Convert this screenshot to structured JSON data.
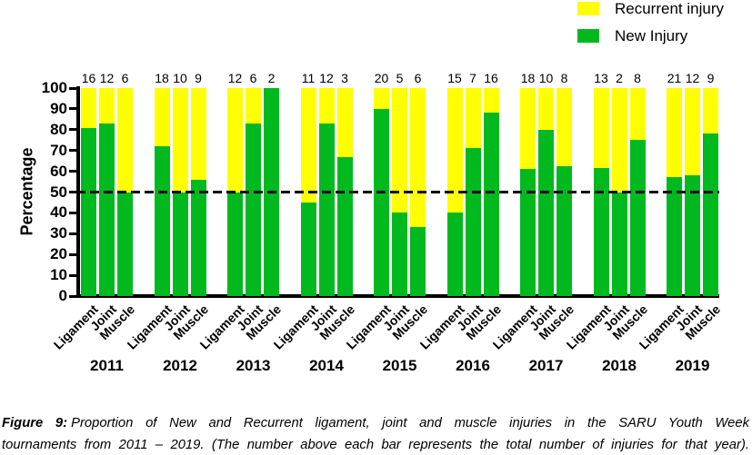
{
  "legend": {
    "items": [
      {
        "id": "recurrent",
        "label": "Recurrent injury",
        "color": "#FFFF00"
      },
      {
        "id": "new",
        "label": "New Injury",
        "color": "#00B91F"
      }
    ]
  },
  "y_axis": {
    "label": "Percentage",
    "ticks": [
      100,
      90,
      80,
      70,
      60,
      50,
      40,
      30,
      20,
      10,
      0
    ]
  },
  "colors": {
    "new_injury": "#00B91F",
    "recurrent_injury": "#FFFF00",
    "axis": "#000000"
  },
  "chart_data": {
    "type": "bar",
    "stacked": true,
    "ylabel": "Percentage",
    "ylim": [
      0,
      100
    ],
    "grid": false,
    "legend_position": "top-right",
    "reference_line_pct": 50,
    "subcategories": [
      "Ligament",
      "Joint",
      "Muscle"
    ],
    "series_note": "bars stacked to 100%: New Injury (green, bottom) + Recurrent injury (yellow, top); number above bar = total injuries",
    "groups": [
      {
        "year": "2011",
        "bars": [
          {
            "category": "Ligament",
            "total": 16,
            "new_pct": 81,
            "recurrent_pct": 19
          },
          {
            "category": "Joint",
            "total": 12,
            "new_pct": 83,
            "recurrent_pct": 17
          },
          {
            "category": "Muscle",
            "total": 6,
            "new_pct": 50,
            "recurrent_pct": 50
          }
        ]
      },
      {
        "year": "2012",
        "bars": [
          {
            "category": "Ligament",
            "total": 18,
            "new_pct": 72,
            "recurrent_pct": 28
          },
          {
            "category": "Joint",
            "total": 10,
            "new_pct": 50,
            "recurrent_pct": 50
          },
          {
            "category": "Muscle",
            "total": 9,
            "new_pct": 56,
            "recurrent_pct": 44
          }
        ]
      },
      {
        "year": "2013",
        "bars": [
          {
            "category": "Ligament",
            "total": 12,
            "new_pct": 50,
            "recurrent_pct": 50
          },
          {
            "category": "Joint",
            "total": 6,
            "new_pct": 83,
            "recurrent_pct": 17
          },
          {
            "category": "Muscle",
            "total": 2,
            "new_pct": 100,
            "recurrent_pct": 0
          }
        ]
      },
      {
        "year": "2014",
        "bars": [
          {
            "category": "Ligament",
            "total": 11,
            "new_pct": 45,
            "recurrent_pct": 55
          },
          {
            "category": "Joint",
            "total": 12,
            "new_pct": 83,
            "recurrent_pct": 17
          },
          {
            "category": "Muscle",
            "total": 3,
            "new_pct": 67,
            "recurrent_pct": 33
          }
        ]
      },
      {
        "year": "2015",
        "bars": [
          {
            "category": "Ligament",
            "total": 20,
            "new_pct": 90,
            "recurrent_pct": 10
          },
          {
            "category": "Joint",
            "total": 5,
            "new_pct": 40,
            "recurrent_pct": 60
          },
          {
            "category": "Muscle",
            "total": 6,
            "new_pct": 33,
            "recurrent_pct": 67
          }
        ]
      },
      {
        "year": "2016",
        "bars": [
          {
            "category": "Ligament",
            "total": 15,
            "new_pct": 40,
            "recurrent_pct": 60
          },
          {
            "category": "Joint",
            "total": 7,
            "new_pct": 71,
            "recurrent_pct": 29
          },
          {
            "category": "Muscle",
            "total": 16,
            "new_pct": 88,
            "recurrent_pct": 12
          }
        ]
      },
      {
        "year": "2017",
        "bars": [
          {
            "category": "Ligament",
            "total": 18,
            "new_pct": 61,
            "recurrent_pct": 39
          },
          {
            "category": "Joint",
            "total": 10,
            "new_pct": 80,
            "recurrent_pct": 20
          },
          {
            "category": "Muscle",
            "total": 8,
            "new_pct": 62.5,
            "recurrent_pct": 37.5
          }
        ]
      },
      {
        "year": "2018",
        "bars": [
          {
            "category": "Ligament",
            "total": 13,
            "new_pct": 61.5,
            "recurrent_pct": 38.5
          },
          {
            "category": "Joint",
            "total": 2,
            "new_pct": 50,
            "recurrent_pct": 50
          },
          {
            "category": "Muscle",
            "total": 8,
            "new_pct": 75,
            "recurrent_pct": 25
          }
        ]
      },
      {
        "year": "2019",
        "bars": [
          {
            "category": "Ligament",
            "total": 21,
            "new_pct": 57,
            "recurrent_pct": 43
          },
          {
            "category": "Joint",
            "total": 12,
            "new_pct": 58,
            "recurrent_pct": 42
          },
          {
            "category": "Muscle",
            "total": 9,
            "new_pct": 78,
            "recurrent_pct": 22
          }
        ]
      }
    ]
  },
  "caption": {
    "prefix": "Figure 9:",
    "line1": "Proportion of New and Recurrent ligament, joint and muscle injuries in the SARU Youth Week",
    "line2": "tournaments from 2011 – 2019. (The number above each bar represents the total number of injuries for that year)."
  }
}
